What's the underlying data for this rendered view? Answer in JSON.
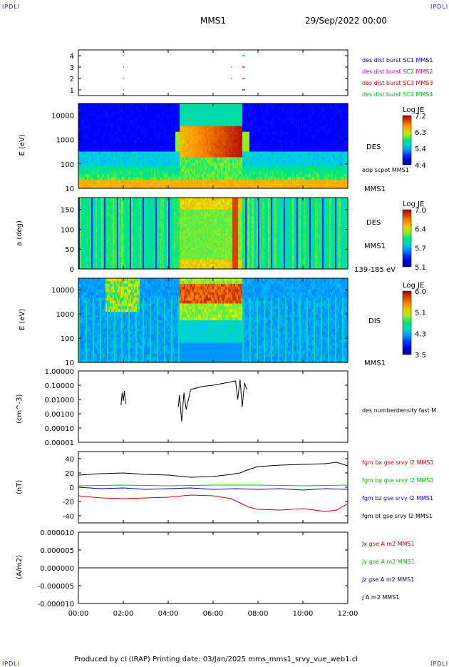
{
  "header": {
    "corner_label": "IPDLI",
    "spacecraft": "MMS1",
    "date": "29/Sep/2022 00:00"
  },
  "footer": {
    "text": "Produced by cl (IRAP)   Printing date: 03/Jan/2025   mms_mms1_srvy_vue_web1.cl"
  },
  "colors": {
    "blue": "#0000c8",
    "magenta": "#d000d0",
    "red": "#d00000",
    "green": "#00c000",
    "black": "#000000"
  },
  "chart_data": [
    {
      "type": "scatter",
      "panel": "burst",
      "yticks": [
        "1",
        "2",
        "3",
        "4"
      ],
      "legend": [
        {
          "text": "des dist burst SC1 MMS1",
          "color": "#0000c8"
        },
        {
          "text": "des dist burst SC2 MMS2",
          "color": "#d000d0"
        },
        {
          "text": "des dist burst SC3 MMS3",
          "color": "#d00000"
        },
        {
          "text": "des dist burst SC4 MMS4",
          "color": "#00c000"
        }
      ],
      "series": [
        {
          "name": "des dist burst SC1 MMS1",
          "y": 1,
          "x": [
            2.0,
            7.3
          ]
        },
        {
          "name": "des dist burst SC2 MMS2",
          "y": 2,
          "x": [
            2.0,
            6.8,
            7.3
          ]
        },
        {
          "name": "des dist burst SC3 MMS3",
          "y": 3,
          "x": [
            2.0,
            6.8,
            7.3
          ]
        },
        {
          "name": "des dist burst SC4 MMS4",
          "y": 4,
          "x": [
            2.0,
            7.3
          ]
        }
      ]
    },
    {
      "type": "heatmap",
      "panel": "des_energy",
      "ylabel": "E (eV)",
      "yticks": [
        "10000",
        "1000",
        "100",
        "10"
      ],
      "ylim": [
        10,
        30000
      ],
      "log_y": true,
      "label": "DES",
      "annotation": "edp scpot MMS1",
      "bottom_label": "MMS1",
      "colorbar": {
        "title": "Log JE",
        "ticks": [
          "7.2",
          "6.3",
          "5.4",
          "4.4"
        ]
      }
    },
    {
      "type": "heatmap",
      "panel": "des_pitch",
      "ylabel": "a (deg)",
      "yticks": [
        "150",
        "100",
        "50",
        "0"
      ],
      "ylim": [
        0,
        180
      ],
      "label": "DES",
      "label2": "MMS1",
      "bottom_label": "139-185 eV",
      "colorbar": {
        "title": "Log JE",
        "ticks": [
          "7.0",
          "6.4",
          "5.7",
          "5.1"
        ]
      }
    },
    {
      "type": "heatmap",
      "panel": "dis_energy",
      "ylabel": "E (eV)",
      "yticks": [
        "10000",
        "1000",
        "100",
        "10"
      ],
      "ylim": [
        10,
        30000
      ],
      "log_y": true,
      "label": "DIS",
      "bottom_label": "MMS1",
      "colorbar": {
        "title": "Log JE",
        "ticks": [
          "6.0",
          "5.1",
          "4.3",
          "3.5"
        ]
      }
    },
    {
      "type": "line",
      "panel": "density",
      "ylabel": "(cm^-3)",
      "yticks": [
        "1.00000",
        "0.10000",
        "0.01000",
        "0.00100",
        "0.00010",
        "0.00001"
      ],
      "ylim": [
        1e-05,
        1
      ],
      "log_y": true,
      "legend": [
        {
          "text": "des numberdensity fast M",
          "color": "#000000"
        }
      ],
      "series": [
        {
          "name": "des numberdensity fast M",
          "segments": [
            [
              [
                1.9,
                0.004
              ],
              [
                1.95,
                0.03
              ],
              [
                2.0,
                0.008
              ],
              [
                2.05,
                0.04
              ],
              [
                2.1,
                0.005
              ]
            ],
            [
              [
                4.45,
                0.003
              ],
              [
                4.5,
                0.02
              ],
              [
                4.6,
                0.0003
              ],
              [
                4.7,
                0.03
              ],
              [
                4.8,
                0.002
              ],
              [
                5.0,
                0.05
              ],
              [
                5.5,
                0.08
              ],
              [
                6.0,
                0.1
              ],
              [
                6.5,
                0.14
              ],
              [
                7.0,
                0.2
              ],
              [
                7.1,
                0.01
              ],
              [
                7.2,
                0.25
              ],
              [
                7.3,
                0.003
              ],
              [
                7.4,
                0.15
              ],
              [
                7.5,
                0.05
              ]
            ]
          ]
        }
      ]
    },
    {
      "type": "line",
      "panel": "magnetic_field",
      "ylabel": "(nT)",
      "yticks": [
        "40",
        "20",
        "0",
        "-20",
        "-40"
      ],
      "ylim": [
        -50,
        50
      ],
      "legend": [
        {
          "text": "fgm bx gse srvy l2 MMS1",
          "color": "#d00000"
        },
        {
          "text": "fgm by gse srvy l2 MMS1",
          "color": "#00c000"
        },
        {
          "text": "fgm bz gse srvy l2 MMS1",
          "color": "#0000c8"
        },
        {
          "text": "fgm bt gse srvy l2 MMS1",
          "color": "#000000"
        }
      ],
      "series": [
        {
          "name": "fgm bt gse srvy l2 MMS1",
          "points": [
            [
              0,
              17
            ],
            [
              1,
              19
            ],
            [
              2,
              20
            ],
            [
              3,
              18
            ],
            [
              4,
              17
            ],
            [
              5,
              14
            ],
            [
              6,
              15
            ],
            [
              6.8,
              18
            ],
            [
              7.2,
              20
            ],
            [
              7.6,
              25
            ],
            [
              8,
              29
            ],
            [
              9,
              31
            ],
            [
              10,
              32
            ],
            [
              11,
              33
            ],
            [
              11.5,
              35
            ],
            [
              12,
              30
            ]
          ]
        },
        {
          "name": "fgm bx gse srvy l2 MMS1",
          "points": [
            [
              0,
              -12
            ],
            [
              1,
              -15
            ],
            [
              2,
              -16
            ],
            [
              3,
              -15
            ],
            [
              4,
              -14
            ],
            [
              5,
              -11
            ],
            [
              6,
              -12
            ],
            [
              6.8,
              -16
            ],
            [
              7.2,
              -22
            ],
            [
              7.6,
              -28
            ],
            [
              8,
              -31
            ],
            [
              9,
              -32
            ],
            [
              10,
              -30
            ],
            [
              11,
              -34
            ],
            [
              11.5,
              -32
            ],
            [
              12,
              -23
            ]
          ]
        },
        {
          "name": "fgm by gse srvy l2 MMS1",
          "points": [
            [
              0,
              2
            ],
            [
              2,
              3
            ],
            [
              4,
              2
            ],
            [
              6,
              3
            ],
            [
              8,
              3
            ],
            [
              10,
              2
            ],
            [
              12,
              3
            ]
          ]
        },
        {
          "name": "fgm bz gse srvy l2 MMS1",
          "points": [
            [
              0,
              0
            ],
            [
              1,
              -2
            ],
            [
              2,
              -1
            ],
            [
              3,
              -3
            ],
            [
              4,
              -2
            ],
            [
              5,
              -1
            ],
            [
              6,
              -3
            ],
            [
              7,
              -2
            ],
            [
              8,
              -3
            ],
            [
              9,
              -2
            ],
            [
              10,
              -4
            ],
            [
              11,
              -2
            ],
            [
              12,
              -3
            ]
          ]
        }
      ]
    },
    {
      "type": "line",
      "panel": "current",
      "ylabel": "(A/m2)",
      "yticks": [
        "0.000010",
        "0.000005",
        "0.000000",
        "-0.000005",
        "-0.000010"
      ],
      "ylim": [
        -1e-05,
        1e-05
      ],
      "legend": [
        {
          "text": "Jx gse A m2 MMS1",
          "color": "#d00000"
        },
        {
          "text": "Jy gse A m2 MMS1",
          "color": "#00c000"
        },
        {
          "text": "Jz gse A m2 MMS1",
          "color": "#0000c8"
        },
        {
          "text": "J A m2 MMS1",
          "color": "#000000"
        }
      ],
      "series": [
        {
          "name": "J A m2 MMS1",
          "points": [
            [
              0,
              0
            ],
            [
              12,
              0
            ]
          ]
        }
      ],
      "xticks": [
        "00:00",
        "02:00",
        "04:00",
        "06:00",
        "08:00",
        "10:00",
        "12:00"
      ],
      "xlim": [
        0,
        12
      ]
    }
  ]
}
